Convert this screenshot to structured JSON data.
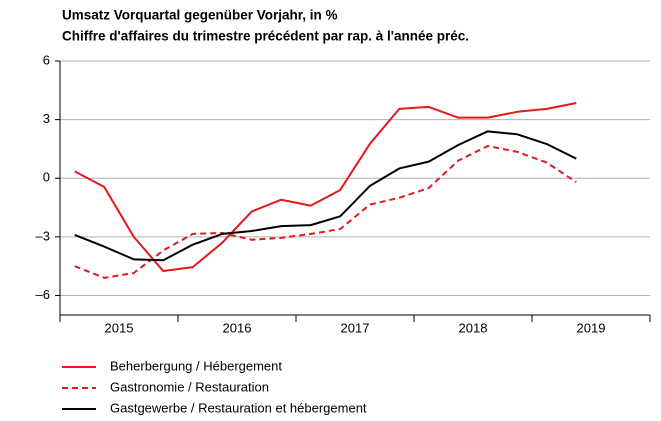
{
  "chart_data": {
    "type": "line",
    "title": "Umsatz Vorquartal gegenüber Vorjahr, in %",
    "subtitle": "Chiffre d'affaires du trimestre précédent par rap. à l'année préc.",
    "years": [
      "2015",
      "2016",
      "2017",
      "2018",
      "2019"
    ],
    "quarters_per_year": 4,
    "series": [
      {
        "name": "Beherbergung / Hébergement",
        "color": "#e3191c",
        "dash": false,
        "values": [
          0.35,
          -0.45,
          -3.0,
          -4.75,
          -4.55,
          -3.3,
          -1.7,
          -1.1,
          -1.4,
          -0.6,
          1.75,
          3.55,
          3.65,
          3.1,
          3.1,
          3.4,
          3.55,
          3.85
        ]
      },
      {
        "name": "Gastronomie / Restauration",
        "color": "#e3191c",
        "dash": true,
        "values": [
          -4.5,
          -5.1,
          -4.85,
          -3.7,
          -2.85,
          -2.8,
          -3.15,
          -3.05,
          -2.85,
          -2.6,
          -1.35,
          -1.0,
          -0.5,
          0.9,
          1.65,
          1.35,
          0.8,
          -0.2
        ]
      },
      {
        "name": "Gastgewerbe / Restauration et hébergement",
        "color": "#000000",
        "dash": false,
        "values": [
          -2.9,
          -3.5,
          -4.15,
          -4.2,
          -3.4,
          -2.85,
          -2.7,
          -2.45,
          -2.4,
          -1.95,
          -0.4,
          0.5,
          0.85,
          1.7,
          2.4,
          2.25,
          1.75,
          1.0
        ]
      }
    ],
    "ylim": [
      -7,
      6
    ],
    "yticks": [
      {
        "value": -6,
        "label": "–6"
      },
      {
        "value": -3,
        "label": "–3"
      },
      0,
      3,
      6
    ],
    "grid": true
  }
}
